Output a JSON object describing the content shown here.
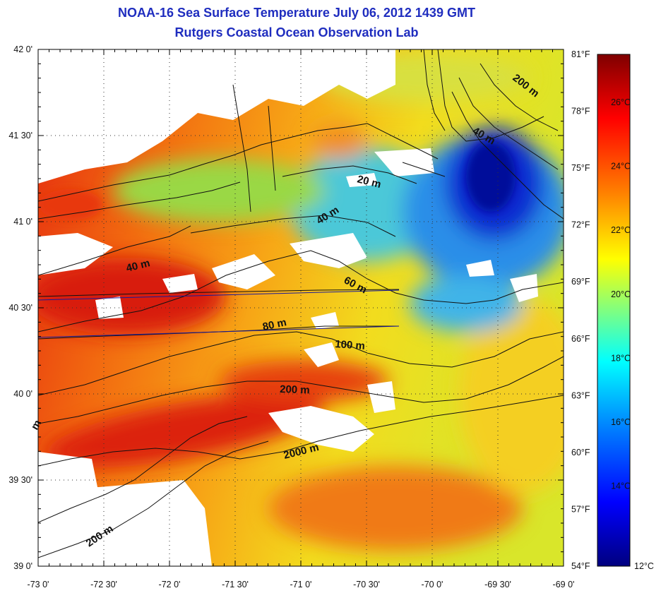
{
  "title": {
    "line1": "NOAA-16 Sea Surface Temperature July 06, 2012 1439 GMT",
    "line2": "Rutgers Coastal Ocean Observation Lab"
  },
  "colors": {
    "title": "#1f2dbf",
    "colormap": [
      "#00007f",
      "#0000ff",
      "#0080ff",
      "#00ffff",
      "#80ff80",
      "#ffff00",
      "#ff8000",
      "#ff0000",
      "#7f0000"
    ]
  },
  "map_data": {
    "lon_range": [
      -73.0,
      -69.0
    ],
    "lat_range": [
      39.0,
      42.0
    ],
    "lat_ticks": [
      "42 0'",
      "41 30'",
      "41 0'",
      "40 30'",
      "40 0'",
      "39 30'",
      "39 0'"
    ],
    "lon_ticks": [
      "-73 0'",
      "-72 30'",
      "-72 0'",
      "-71 30'",
      "-71 0'",
      "-70 30'",
      "-70 0'",
      "-69 30'",
      "-69 0'"
    ],
    "fahrenheit_ticks": [
      "81°F",
      "78°F",
      "75°F",
      "72°F",
      "69°F",
      "66°F",
      "63°F",
      "60°F",
      "57°F",
      "54°F"
    ],
    "celsius_ticks": [
      "26°C",
      "24°C",
      "22°C",
      "20°C",
      "18°C",
      "16°C",
      "14°C",
      "12°C"
    ],
    "celsius_range": [
      11.5,
      27.5
    ],
    "fahrenheit_range": [
      54,
      81
    ],
    "grid": "dotted",
    "contour_labels": [
      "200 m",
      "40 m",
      "20 m",
      "40 m",
      "40 m",
      "60 m",
      "80 m",
      "100 m",
      "200 m",
      "2000 m",
      "200 m",
      "m"
    ]
  }
}
